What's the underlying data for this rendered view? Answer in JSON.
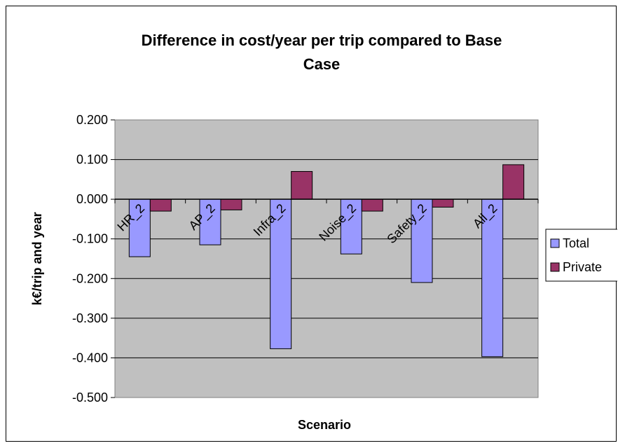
{
  "chart_data": {
    "type": "bar",
    "title": "Difference in cost/year per trip compared to Base Case",
    "title_lines": [
      "Difference in cost/year per trip compared to Base",
      "Case"
    ],
    "xlabel": "Scenario",
    "ylabel": "k€/trip and year",
    "categories": [
      "HR_2",
      "AP_2",
      "Infra_2",
      "Noise_2",
      "Safety_2",
      "All_2"
    ],
    "series": [
      {
        "name": "Total",
        "color": "#9999ff",
        "values": [
          -0.145,
          -0.115,
          -0.377,
          -0.138,
          -0.21,
          -0.397
        ]
      },
      {
        "name": "Private",
        "color": "#993366",
        "values": [
          -0.03,
          -0.027,
          0.07,
          -0.03,
          -0.02,
          0.087
        ]
      }
    ],
    "ylim": [
      -0.5,
      0.2
    ],
    "yticks": [
      "0.200",
      "0.100",
      "0.000",
      "-0.100",
      "-0.200",
      "-0.300",
      "-0.400",
      "-0.500"
    ],
    "grid": true,
    "plot_background": "#c0c0c0",
    "legend_position": "right"
  }
}
